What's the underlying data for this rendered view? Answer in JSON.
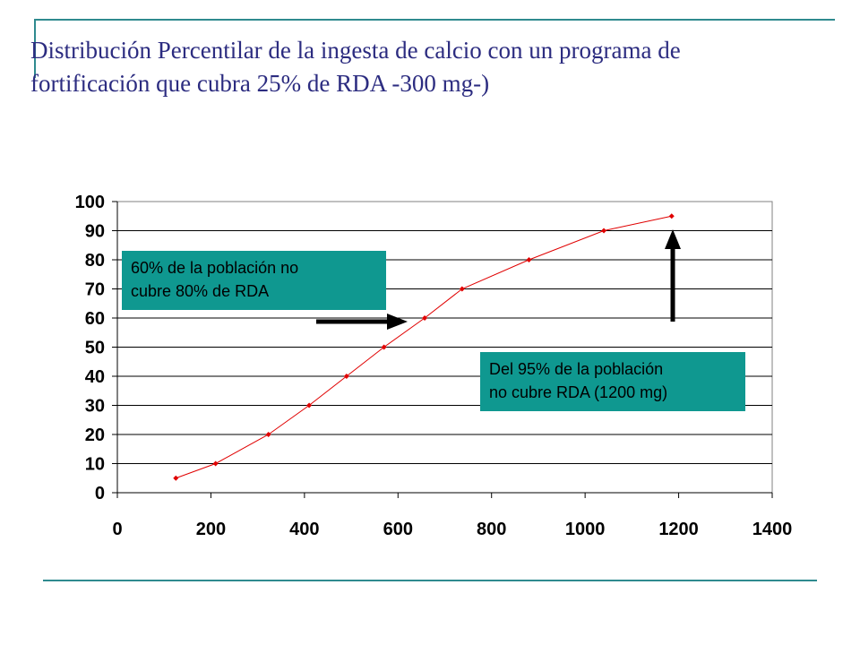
{
  "slide": {
    "title_line1": "Distribución Percentilar de la ingesta de calcio con un programa de",
    "title_line2": "fortificación que cubra 25% de RDA -300 mg-)",
    "accent_color": "#2f8a8f",
    "title_color": "#2c2c80"
  },
  "chart_data": {
    "type": "scatter",
    "title": "",
    "xlabel": "",
    "ylabel": "",
    "xlim": [
      0,
      1400
    ],
    "ylim": [
      0,
      100
    ],
    "x_ticks": [
      0,
      200,
      400,
      600,
      800,
      1000,
      1200,
      1400
    ],
    "y_ticks": [
      0,
      10,
      20,
      30,
      40,
      50,
      60,
      70,
      80,
      90,
      100
    ],
    "grid": "horizontal",
    "legend": "none",
    "series": [
      {
        "color": "#e00000",
        "x": [
          125,
          210,
          323,
          410,
          490,
          570,
          657,
          737,
          880,
          1040,
          1185
        ],
        "y": [
          5,
          10,
          20,
          30,
          40,
          50,
          60,
          70,
          80,
          90,
          95
        ]
      }
    ]
  },
  "annotations": {
    "left_box": {
      "line1": "60% de la población no",
      "line2": "cubre 80% de RDA",
      "color": "#0f9890"
    },
    "right_box": {
      "line1": "Del 95% de la población",
      "line2": "no cubre RDA (1200 mg)",
      "color": "#0f9890"
    }
  }
}
